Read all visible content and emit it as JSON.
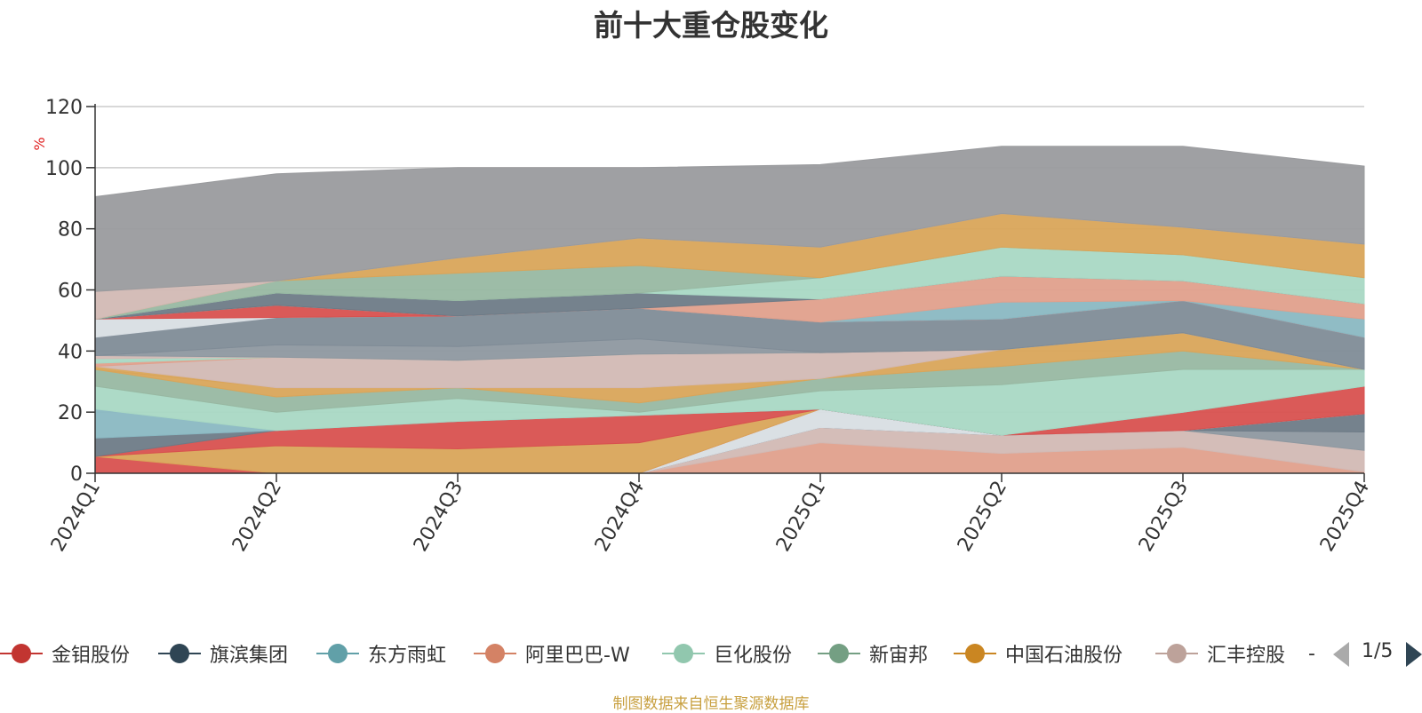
{
  "title": "前十大重仓股变化",
  "footer": "制图数据来自恒生聚源数据库",
  "legend_more": "-",
  "pager": {
    "text": "1/5"
  },
  "chart_data": {
    "type": "area",
    "stacked": true,
    "title": "前十大重仓股变化",
    "ylabel": "%",
    "xlabel": "",
    "ylim": [
      0,
      120
    ],
    "yticks": [
      0,
      20,
      40,
      60,
      80,
      100,
      120
    ],
    "grid": true,
    "legend_position": "bottom",
    "categories": [
      "2024Q1",
      "2024Q2",
      "2024Q3",
      "2024Q4",
      "2025Q1",
      "2025Q2",
      "2025Q3",
      "2025Q4"
    ],
    "series": [
      {
        "name": "",
        "color": "#e0a08c",
        "values": [
          0,
          0,
          0,
          0,
          10,
          6.5,
          8.5,
          0.5
        ]
      },
      {
        "name": "",
        "color": "#d2b9b4",
        "values": [
          0,
          0,
          0,
          0,
          5,
          6,
          5.5,
          7
        ]
      },
      {
        "name": "",
        "color": "#8e98a0",
        "values": [
          0,
          0,
          0,
          0,
          0,
          0,
          0,
          6
        ]
      },
      {
        "name": "",
        "color": "#6e7b87",
        "values": [
          0,
          0,
          0,
          0,
          0,
          0,
          0,
          6
        ]
      },
      {
        "name": "",
        "color": "#d8dee3",
        "values": [
          0,
          0,
          0,
          0,
          6,
          0,
          0,
          0
        ]
      },
      {
        "name": "金钼股份",
        "color": "#d8514f",
        "values": [
          5.5,
          0,
          0,
          0,
          0,
          0,
          6,
          9
        ]
      },
      {
        "name": "中国石油股份",
        "color": "#d9a55a",
        "values": [
          0,
          9,
          8,
          10,
          0,
          0,
          0,
          0
        ]
      },
      {
        "name": "",
        "color": "#d8514f",
        "values": [
          0,
          5,
          9,
          9,
          0,
          0,
          0,
          0
        ]
      },
      {
        "name": "旗滨集团",
        "color": "#6e7b87",
        "values": [
          6,
          0,
          0,
          0,
          0,
          0,
          0,
          0
        ]
      },
      {
        "name": "东方雨虹",
        "color": "#8ab8c2",
        "values": [
          9.5,
          0,
          0,
          0,
          0,
          0,
          0,
          0
        ]
      },
      {
        "name": "巨化股份",
        "color": "#a9d8c4",
        "values": [
          7.5,
          6,
          7.5,
          1,
          6,
          16.5,
          14,
          5.5
        ]
      },
      {
        "name": "新宙邦",
        "color": "#98b8a2",
        "values": [
          5.5,
          5,
          3.5,
          3,
          4,
          6,
          6,
          0
        ]
      },
      {
        "name": "中国石油股份",
        "color": "#d9a55a",
        "values": [
          0,
          3,
          0,
          5,
          0,
          5.5,
          6,
          0
        ]
      },
      {
        "name": "",
        "color": "#d9a55a",
        "values": [
          1,
          0,
          0,
          0,
          0,
          0,
          0,
          0
        ]
      },
      {
        "name": "汇丰控股",
        "color": "#d2b9b4",
        "values": [
          0,
          10,
          9,
          11,
          8.5,
          0,
          0,
          0
        ]
      },
      {
        "name": "",
        "color": "#e0a08c",
        "values": [
          1,
          0,
          0,
          0,
          0,
          0,
          0,
          0
        ]
      },
      {
        "name": "",
        "color": "#a9d8c4",
        "values": [
          1.5,
          0,
          0,
          0,
          0,
          0,
          0,
          0
        ]
      },
      {
        "name": "",
        "color": "#d2b9b4",
        "values": [
          1,
          0,
          0,
          0,
          0,
          0,
          0,
          0
        ]
      },
      {
        "name": "",
        "color": "#8e98a0",
        "values": [
          0,
          4,
          4.5,
          5,
          0,
          0,
          0,
          0
        ]
      },
      {
        "name": "",
        "color": "#808c97",
        "values": [
          6,
          9,
          10,
          10,
          10,
          10,
          10.5,
          10.5
        ]
      },
      {
        "name": "",
        "color": "#d8dee3",
        "values": [
          6,
          0,
          0,
          0,
          0,
          0,
          0,
          0
        ]
      },
      {
        "name": "",
        "color": "#d8514f",
        "values": [
          0,
          4,
          0,
          0,
          0,
          0,
          0,
          0
        ]
      },
      {
        "name": "",
        "color": "#8ab8c2",
        "values": [
          0,
          0,
          0,
          0,
          0,
          5.5,
          0,
          6
        ]
      },
      {
        "name": "",
        "color": "#e0a08c",
        "values": [
          0,
          0,
          0,
          0,
          7.5,
          8.5,
          6.5,
          5
        ]
      },
      {
        "name": "",
        "color": "#6e7b87",
        "values": [
          0,
          4,
          5,
          5,
          0,
          0,
          0,
          0
        ]
      },
      {
        "name": "",
        "color": "#a9d8c4",
        "values": [
          0,
          0,
          0,
          0,
          7,
          9.5,
          8.5,
          8.5
        ]
      },
      {
        "name": "",
        "color": "#98b8a2",
        "values": [
          0,
          4,
          9,
          9,
          0,
          0,
          0,
          0
        ]
      },
      {
        "name": "",
        "color": "#d9a55a",
        "values": [
          0,
          0,
          5,
          9,
          10,
          11,
          9,
          11
        ]
      },
      {
        "name": "",
        "color": "#d2b9b4",
        "values": [
          9,
          0,
          0,
          0,
          0,
          0,
          0,
          0
        ]
      },
      {
        "name": "",
        "color": "#9a9b9e",
        "values": [
          31,
          35,
          29.5,
          23,
          27,
          22,
          26.5,
          25.5
        ]
      }
    ]
  },
  "legend": [
    {
      "label": "金钼股份",
      "color": "#c23531"
    },
    {
      "label": "旗滨集团",
      "color": "#2f4554"
    },
    {
      "label": "东方雨虹",
      "color": "#61a0a8"
    },
    {
      "label": "阿里巴巴-W",
      "color": "#d48265"
    },
    {
      "label": "巨化股份",
      "color": "#91c7ae"
    },
    {
      "label": "新宙邦",
      "color": "#749f83"
    },
    {
      "label": "中国石油股份",
      "color": "#ca8622"
    },
    {
      "label": "汇丰控股",
      "color": "#bda29a"
    }
  ]
}
